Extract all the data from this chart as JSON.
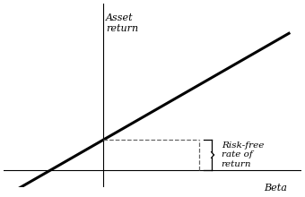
{
  "title": "",
  "xlabel": "Beta",
  "ylabel": "Asset\nreturn",
  "rf_y": 0.5,
  "sml_slope": 0.6,
  "xlim": [
    -1.6,
    3.2
  ],
  "ylim": [
    -0.3,
    2.8
  ],
  "line_color": "#000000",
  "dashed_color": "#666666",
  "annotation_text": "Risk-free\nrate of\nreturn",
  "background_color": "#ffffff",
  "brace_x": 1.55,
  "x_start": -1.5,
  "x_end": 3.0
}
